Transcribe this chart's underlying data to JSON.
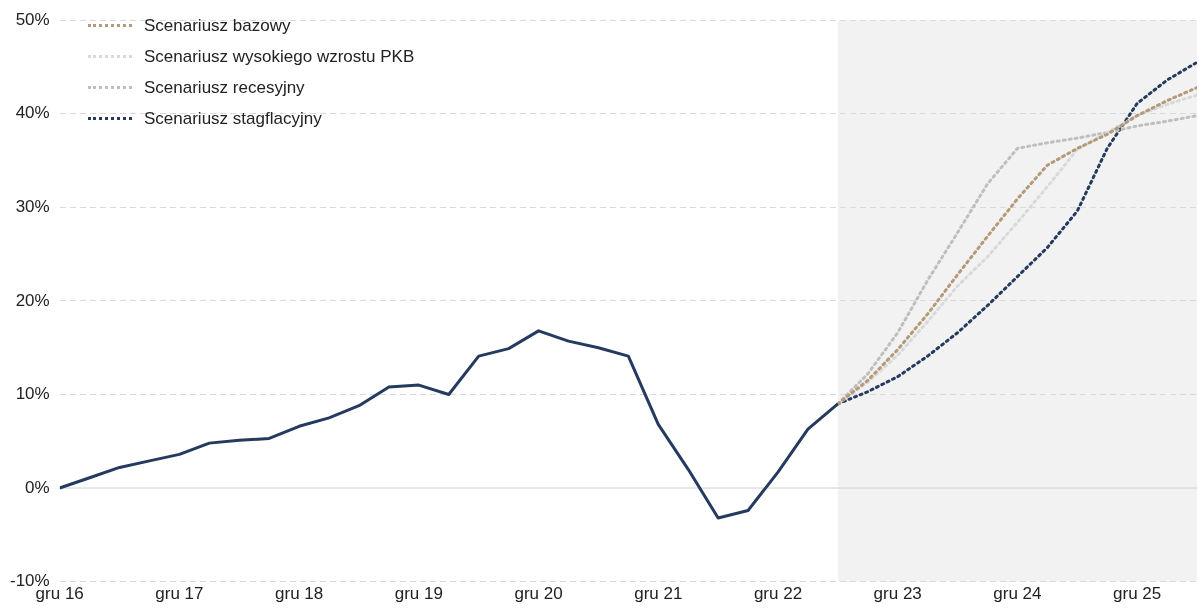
{
  "chart_data": {
    "type": "line",
    "xlim": [
      "2016-12",
      "2026-06"
    ],
    "xticks": [
      {
        "value": "2016-12",
        "label": "gru 16"
      },
      {
        "value": "2017-12",
        "label": "gru 17"
      },
      {
        "value": "2018-12",
        "label": "gru 18"
      },
      {
        "value": "2019-12",
        "label": "gru 19"
      },
      {
        "value": "2020-12",
        "label": "gru 20"
      },
      {
        "value": "2021-12",
        "label": "gru 21"
      },
      {
        "value": "2022-12",
        "label": "gru 22"
      },
      {
        "value": "2023-12",
        "label": "gru 23"
      },
      {
        "value": "2024-12",
        "label": "gru 24"
      },
      {
        "value": "2025-12",
        "label": "gru 25"
      }
    ],
    "ylim": [
      -10,
      50
    ],
    "yticks": [
      {
        "value": -10,
        "label": "-10%"
      },
      {
        "value": 0,
        "label": "0%"
      },
      {
        "value": 10,
        "label": "10%"
      },
      {
        "value": 20,
        "label": "20%"
      },
      {
        "value": 30,
        "label": "30%"
      },
      {
        "value": 40,
        "label": "40%"
      },
      {
        "value": 50,
        "label": "50%"
      }
    ],
    "grid": "y",
    "legend": "top left",
    "marker": "none",
    "bands": [
      {
        "axis": "x",
        "from": "2023-06",
        "to": "2026-06",
        "color": "#f2f2f2"
      }
    ],
    "series": [
      {
        "color": "#243a5e",
        "line_style": "solid",
        "x": [
          "2016-12",
          "2017-03",
          "2017-06",
          "2017-09",
          "2017-12",
          "2018-03",
          "2018-06",
          "2018-09",
          "2018-12",
          "2019-03",
          "2019-06",
          "2019-09",
          "2019-12",
          "2020-03",
          "2020-06",
          "2020-09",
          "2020-12",
          "2021-03",
          "2021-06",
          "2021-09",
          "2021-12",
          "2022-03",
          "2022-06",
          "2022-09",
          "2022-12",
          "2023-03",
          "2023-06"
        ],
        "values": [
          0,
          1.1,
          2.2,
          2.9,
          3.6,
          4.8,
          5.1,
          5.3,
          6.6,
          7.5,
          8.8,
          10.8,
          11.0,
          10.0,
          14.1,
          14.9,
          16.8,
          15.7,
          15.0,
          14.1,
          6.8,
          2.0,
          -3.2,
          -2.4,
          1.7,
          6.3,
          9.0
        ]
      },
      {
        "name": "Scenariusz bazowy",
        "color": "#b49a78",
        "line_style": "dotted",
        "x": [
          "2023-06",
          "2023-09",
          "2023-12",
          "2024-03",
          "2024-06",
          "2024-09",
          "2024-12",
          "2025-03",
          "2025-06",
          "2025-09",
          "2025-12",
          "2026-03",
          "2026-06"
        ],
        "values": [
          9.0,
          11.5,
          14.8,
          18.6,
          22.8,
          26.9,
          30.9,
          34.5,
          36.3,
          37.8,
          39.8,
          41.4,
          42.8
        ]
      },
      {
        "name": "Scenariusz wysokiego wzrostu PKB",
        "color": "#d9d9d9",
        "line_style": "dotted",
        "x": [
          "2023-06",
          "2023-09",
          "2023-12",
          "2024-03",
          "2024-06",
          "2024-09",
          "2024-12",
          "2025-03",
          "2025-06",
          "2025-09",
          "2025-12",
          "2026-03",
          "2026-06"
        ],
        "values": [
          9.0,
          11.3,
          14.2,
          17.8,
          21.6,
          24.7,
          28.4,
          32.2,
          36.2,
          38.0,
          39.8,
          41.0,
          42.0
        ]
      },
      {
        "name": "Scenariusz recesyjny",
        "color": "#bfbfbf",
        "line_style": "dotted",
        "x": [
          "2023-06",
          "2023-09",
          "2023-12",
          "2024-03",
          "2024-06",
          "2024-09",
          "2024-12",
          "2025-03",
          "2025-06",
          "2025-09",
          "2025-12",
          "2026-03",
          "2026-06"
        ],
        "values": [
          9.0,
          12.2,
          16.6,
          22.2,
          27.3,
          32.5,
          36.3,
          36.9,
          37.4,
          38.0,
          38.7,
          39.2,
          39.8
        ]
      },
      {
        "name": "Scenariusz stagflacyjny",
        "color": "#243a5e",
        "line_style": "dotted",
        "x": [
          "2023-06",
          "2023-09",
          "2023-12",
          "2024-03",
          "2024-06",
          "2024-09",
          "2024-12",
          "2025-03",
          "2025-06",
          "2025-09",
          "2025-12",
          "2026-03",
          "2026-06"
        ],
        "values": [
          9.0,
          10.3,
          11.9,
          14.1,
          16.6,
          19.5,
          22.6,
          25.7,
          29.6,
          36.3,
          41.1,
          43.6,
          45.5
        ]
      }
    ]
  }
}
